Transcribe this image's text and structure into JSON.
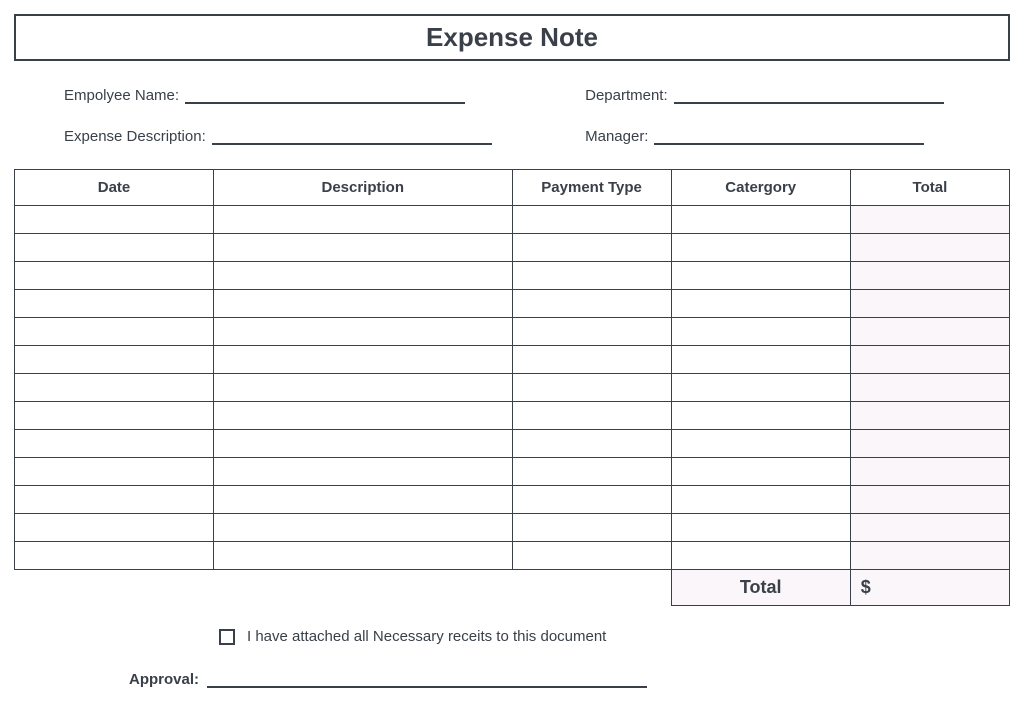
{
  "title": "Expense Note",
  "fields": {
    "employee_name_label": "Empolyee Name:",
    "department_label": "Department:",
    "expense_description_label": "Expense Description:",
    "manager_label": "Manager:"
  },
  "table": {
    "columns": [
      "Date",
      "Description",
      "Payment Type",
      "Catergory",
      "Total"
    ],
    "row_count": 13,
    "total_highlight_color": "#fbf6fa",
    "border_color": "#3a4049",
    "footer_total_label": "Total",
    "footer_total_value": "$"
  },
  "attachment": {
    "text": "I have attached all Necessary receits to this document",
    "checked": false
  },
  "approval_label": "Approval:",
  "colors": {
    "text": "#3a4049",
    "background": "#ffffff",
    "total_cell_bg": "#fbf6fa"
  }
}
